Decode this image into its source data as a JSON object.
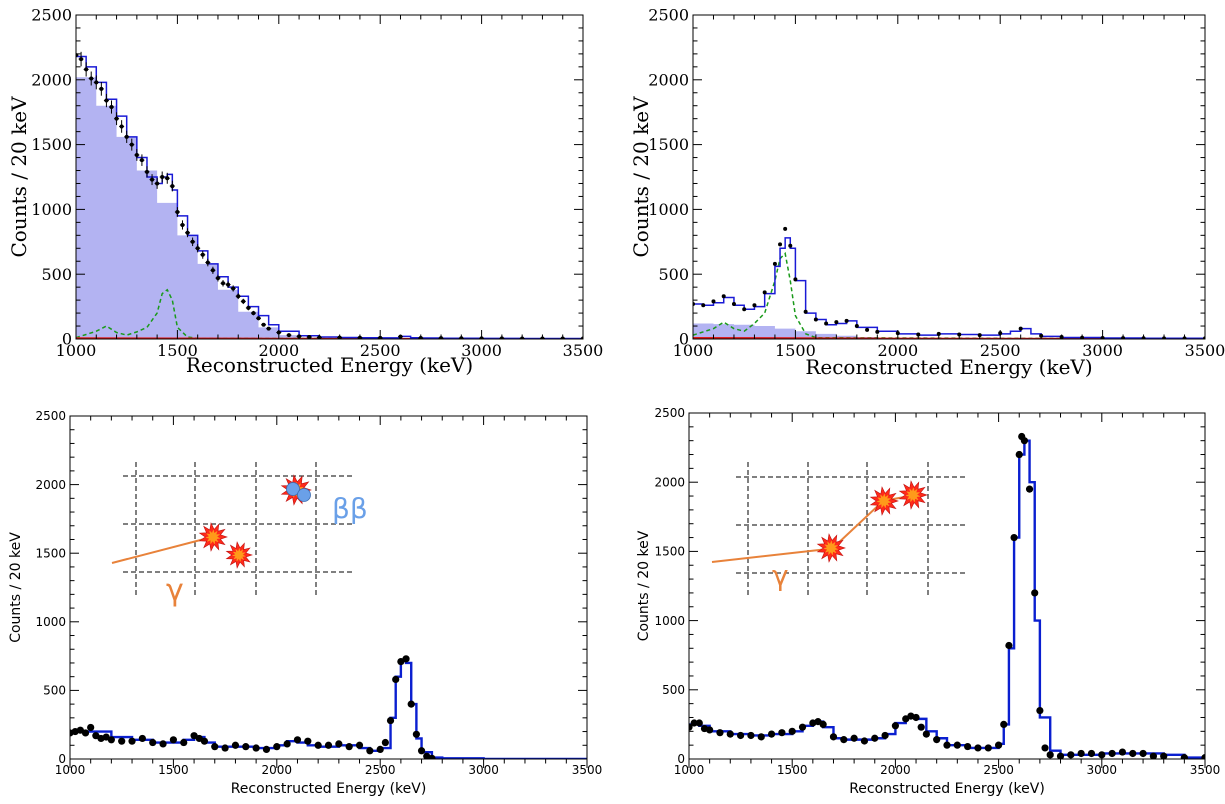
{
  "colors": {
    "fill_blue": "#b3b3f2",
    "model_blue": "#1a1ad6",
    "model_blue_dark": "#0a1fd0",
    "green": "#1a9a1a",
    "red": "#e01818",
    "gamma_orange": "#e8823a",
    "burst_red": "#ff2a1a",
    "burst_orange": "#ff9a1a",
    "beta_blue": "#6aa0e8"
  },
  "chart_data": [
    {
      "type": "bar",
      "panel": "top-left",
      "xlabel": "Reconstructed Energy (keV)",
      "ylabel": "Counts / 20 keV",
      "xlim": [
        1000,
        3500
      ],
      "ylim": [
        0,
        2500
      ],
      "xticks": [
        "1000",
        "1500",
        "2000",
        "2500",
        "3000",
        "3500"
      ],
      "yticks": [
        "0",
        "500",
        "1000",
        "1500",
        "2000",
        "2500"
      ],
      "grid": false,
      "series": [
        {
          "role": "filled-background",
          "style": "filled histogram",
          "x": [
            1000,
            1100,
            1200,
            1300,
            1400,
            1500,
            1600,
            1700,
            1800,
            1900,
            2000,
            2100,
            2200,
            2300,
            2500,
            3000,
            3500
          ],
          "y": [
            2020,
            1800,
            1560,
            1300,
            1050,
            800,
            580,
            380,
            210,
            90,
            30,
            12,
            6,
            4,
            3,
            2,
            2
          ]
        },
        {
          "role": "green-dashed",
          "style": "dashed",
          "x": [
            1000,
            1100,
            1150,
            1200,
            1250,
            1300,
            1350,
            1400,
            1425,
            1450,
            1475,
            1500,
            1550,
            1600,
            3500
          ],
          "y": [
            10,
            60,
            100,
            50,
            30,
            55,
            90,
            200,
            350,
            380,
            300,
            90,
            15,
            5,
            0
          ]
        },
        {
          "role": "red-line",
          "style": "solid",
          "x": [
            1000,
            1500,
            2000,
            2500,
            3000,
            3500
          ],
          "y": [
            8,
            6,
            4,
            3,
            2,
            2
          ]
        },
        {
          "role": "model-total",
          "style": "step",
          "x": [
            1000,
            1050,
            1100,
            1150,
            1200,
            1250,
            1300,
            1350,
            1400,
            1425,
            1450,
            1475,
            1500,
            1550,
            1600,
            1650,
            1700,
            1750,
            1800,
            1850,
            1900,
            1950,
            2000,
            2100,
            2200,
            2300,
            2400,
            2500,
            2600,
            2650,
            2700,
            2800,
            3000,
            3200,
            3500
          ],
          "y": [
            2180,
            2100,
            1980,
            1850,
            1720,
            1560,
            1400,
            1250,
            1200,
            1250,
            1270,
            1150,
            950,
            800,
            680,
            580,
            480,
            400,
            330,
            250,
            180,
            110,
            60,
            25,
            15,
            12,
            10,
            9,
            20,
            10,
            8,
            6,
            5,
            4,
            4
          ]
        },
        {
          "role": "data",
          "style": "points with error bars",
          "x": [
            1000,
            1025,
            1050,
            1075,
            1100,
            1125,
            1150,
            1175,
            1200,
            1225,
            1250,
            1275,
            1300,
            1325,
            1350,
            1375,
            1400,
            1425,
            1450,
            1475,
            1500,
            1525,
            1550,
            1575,
            1600,
            1625,
            1650,
            1675,
            1700,
            1725,
            1750,
            1775,
            1800,
            1825,
            1850,
            1875,
            1900,
            1925,
            1950,
            2000,
            2050,
            2100,
            2150,
            2200,
            2300,
            2400,
            2500,
            2600,
            2700,
            2800,
            2900,
            3000,
            3100,
            3200,
            3300,
            3400,
            3500
          ],
          "y": [
            2190,
            2160,
            2080,
            2010,
            1980,
            1930,
            1840,
            1790,
            1700,
            1640,
            1560,
            1500,
            1420,
            1380,
            1290,
            1230,
            1200,
            1250,
            1240,
            1180,
            980,
            880,
            820,
            750,
            700,
            650,
            590,
            530,
            470,
            430,
            420,
            390,
            330,
            290,
            240,
            200,
            160,
            110,
            80,
            50,
            30,
            20,
            15,
            12,
            11,
            10,
            9,
            18,
            8,
            7,
            6,
            5,
            5,
            4,
            4,
            4,
            4
          ]
        }
      ]
    },
    {
      "type": "bar",
      "panel": "top-right",
      "xlabel": "Reconstructed Energy (keV)",
      "ylabel": "Counts / 20 keV",
      "xlim": [
        1000,
        3500
      ],
      "ylim": [
        0,
        2500
      ],
      "xticks": [
        "1000",
        "1500",
        "2000",
        "2500",
        "3000",
        "3500"
      ],
      "yticks": [
        "0",
        "500",
        "1000",
        "1500",
        "2000",
        "2500"
      ],
      "grid": false,
      "series": [
        {
          "role": "filled-background",
          "style": "filled histogram",
          "x": [
            1000,
            1100,
            1200,
            1300,
            1400,
            1500,
            1600,
            1700,
            1800,
            1900,
            2000,
            2500,
            3500
          ],
          "y": [
            120,
            115,
            110,
            100,
            80,
            60,
            40,
            25,
            15,
            8,
            4,
            2,
            1
          ]
        },
        {
          "role": "green-dashed",
          "style": "dashed",
          "x": [
            1000,
            1100,
            1150,
            1200,
            1250,
            1300,
            1350,
            1400,
            1425,
            1450,
            1475,
            1500,
            1550,
            1600,
            3500
          ],
          "y": [
            30,
            80,
            130,
            80,
            60,
            120,
            200,
            450,
            620,
            660,
            450,
            180,
            40,
            10,
            0
          ]
        },
        {
          "role": "red-line",
          "style": "solid",
          "x": [
            1000,
            1500,
            2000,
            2500,
            3000,
            3500
          ],
          "y": [
            10,
            8,
            5,
            4,
            3,
            3
          ]
        },
        {
          "role": "model-total",
          "style": "step",
          "x": [
            1000,
            1050,
            1100,
            1150,
            1200,
            1250,
            1300,
            1350,
            1400,
            1425,
            1450,
            1475,
            1500,
            1550,
            1600,
            1650,
            1700,
            1750,
            1800,
            1900,
            2000,
            2100,
            2200,
            2300,
            2400,
            2500,
            2550,
            2600,
            2650,
            2700,
            2800,
            3000,
            3200,
            3500
          ],
          "y": [
            270,
            260,
            280,
            320,
            260,
            230,
            250,
            350,
            560,
            700,
            780,
            700,
            450,
            200,
            150,
            110,
            120,
            140,
            90,
            60,
            40,
            30,
            40,
            35,
            30,
            40,
            60,
            80,
            40,
            20,
            12,
            8,
            6,
            5
          ]
        },
        {
          "role": "data",
          "style": "points",
          "x": [
            1000,
            1050,
            1100,
            1150,
            1200,
            1250,
            1300,
            1350,
            1400,
            1425,
            1450,
            1475,
            1500,
            1550,
            1600,
            1650,
            1700,
            1750,
            1800,
            1850,
            1900,
            2000,
            2100,
            2200,
            2300,
            2400,
            2500,
            2600,
            2700,
            2800,
            2900,
            3000,
            3100,
            3200,
            3300,
            3400,
            3500
          ],
          "y": [
            270,
            260,
            290,
            330,
            270,
            230,
            260,
            360,
            580,
            730,
            850,
            720,
            460,
            210,
            150,
            120,
            130,
            140,
            100,
            70,
            55,
            45,
            35,
            40,
            35,
            30,
            45,
            80,
            25,
            15,
            10,
            8,
            7,
            6,
            5,
            5,
            5
          ]
        }
      ]
    },
    {
      "type": "line",
      "panel": "bottom-left",
      "xlabel": "Reconstructed Energy (keV)",
      "ylabel": "Counts / 20 keV",
      "xlim": [
        1000,
        3500
      ],
      "ylim": [
        0,
        2500
      ],
      "xticks": [
        "1000",
        "1500",
        "2000",
        "2500",
        "3000",
        "3500"
      ],
      "yticks": [
        "0",
        "500",
        "1000",
        "1500",
        "2000",
        "2500"
      ],
      "grid": false,
      "series": [
        {
          "role": "model",
          "style": "step",
          "x": [
            1000,
            1100,
            1200,
            1300,
            1400,
            1500,
            1550,
            1600,
            1650,
            1700,
            1800,
            1900,
            2000,
            2050,
            2100,
            2150,
            2200,
            2300,
            2400,
            2450,
            2500,
            2550,
            2575,
            2600,
            2625,
            2650,
            2675,
            2700,
            2750,
            2800,
            3000,
            3500
          ],
          "y": [
            200,
            200,
            160,
            140,
            120,
            120,
            140,
            160,
            120,
            90,
            90,
            80,
            100,
            130,
            120,
            100,
            90,
            100,
            80,
            60,
            80,
            300,
            600,
            720,
            700,
            400,
            150,
            50,
            10,
            5,
            0,
            0
          ]
        },
        {
          "role": "data",
          "style": "points",
          "x": [
            1000,
            1025,
            1050,
            1075,
            1100,
            1125,
            1150,
            1175,
            1200,
            1250,
            1300,
            1350,
            1400,
            1450,
            1500,
            1550,
            1600,
            1625,
            1650,
            1700,
            1750,
            1800,
            1850,
            1900,
            1950,
            2000,
            2050,
            2100,
            2150,
            2200,
            2250,
            2300,
            2350,
            2400,
            2450,
            2500,
            2525,
            2550,
            2575,
            2600,
            2625,
            2650,
            2675,
            2700,
            2725,
            2750
          ],
          "y": [
            190,
            200,
            210,
            190,
            230,
            170,
            150,
            160,
            140,
            130,
            130,
            150,
            120,
            110,
            140,
            120,
            170,
            150,
            130,
            90,
            80,
            100,
            90,
            80,
            70,
            90,
            110,
            140,
            130,
            100,
            100,
            110,
            90,
            100,
            60,
            70,
            120,
            280,
            580,
            710,
            730,
            400,
            180,
            60,
            20,
            5
          ]
        }
      ],
      "inset": {
        "gamma_label": "γ",
        "beta_label": "ββ"
      }
    },
    {
      "type": "line",
      "panel": "bottom-right",
      "xlabel": "Reconstructed Energy (keV)",
      "ylabel": "Counts / 20 keV",
      "xlim": [
        1000,
        3500
      ],
      "ylim": [
        0,
        2500
      ],
      "xticks": [
        "1000",
        "1500",
        "2000",
        "2500",
        "3000",
        "3500"
      ],
      "yticks": [
        "0",
        "500",
        "1000",
        "1500",
        "2000",
        "2500"
      ],
      "grid": false,
      "series": [
        {
          "role": "model",
          "style": "step",
          "x": [
            1000,
            1050,
            1100,
            1200,
            1300,
            1400,
            1500,
            1550,
            1600,
            1650,
            1700,
            1750,
            1800,
            1900,
            1950,
            2000,
            2050,
            2100,
            2150,
            2200,
            2250,
            2300,
            2350,
            2400,
            2450,
            2500,
            2525,
            2550,
            2575,
            2600,
            2625,
            2650,
            2675,
            2700,
            2750,
            2800,
            2900,
            3000,
            3100,
            3200,
            3300,
            3400,
            3500
          ],
          "y": [
            250,
            240,
            200,
            180,
            170,
            180,
            200,
            240,
            270,
            230,
            150,
            140,
            140,
            150,
            180,
            260,
            300,
            290,
            200,
            150,
            100,
            100,
            80,
            80,
            80,
            110,
            250,
            800,
            1600,
            2200,
            2300,
            2000,
            1000,
            300,
            60,
            30,
            30,
            40,
            40,
            40,
            30,
            10,
            10
          ]
        },
        {
          "role": "data",
          "style": "points",
          "x": [
            1000,
            1025,
            1050,
            1075,
            1100,
            1150,
            1200,
            1250,
            1300,
            1350,
            1400,
            1450,
            1500,
            1550,
            1600,
            1625,
            1650,
            1700,
            1750,
            1800,
            1850,
            1900,
            1950,
            2000,
            2050,
            2075,
            2100,
            2125,
            2150,
            2200,
            2250,
            2300,
            2350,
            2400,
            2450,
            2500,
            2525,
            2550,
            2575,
            2600,
            2612,
            2625,
            2650,
            2675,
            2700,
            2725,
            2750,
            2800,
            2850,
            2900,
            2950,
            3000,
            3050,
            3100,
            3150,
            3200,
            3250,
            3300,
            3400,
            3500
          ],
          "y": [
            230,
            260,
            260,
            220,
            210,
            190,
            180,
            170,
            170,
            160,
            180,
            190,
            200,
            230,
            260,
            270,
            250,
            160,
            140,
            150,
            130,
            150,
            170,
            240,
            290,
            310,
            300,
            230,
            180,
            140,
            100,
            100,
            90,
            80,
            80,
            100,
            250,
            820,
            1600,
            2200,
            2330,
            2300,
            1950,
            1200,
            350,
            80,
            30,
            20,
            30,
            40,
            40,
            30,
            40,
            50,
            40,
            40,
            20,
            20,
            10,
            10
          ]
        }
      ],
      "inset": {
        "gamma_label": "γ"
      }
    }
  ]
}
